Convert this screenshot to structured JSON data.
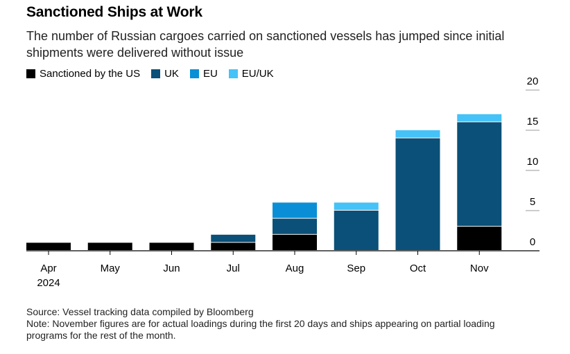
{
  "header": {
    "title": "Sanctioned Ships at Work",
    "subtitle": "The number of Russian cargoes carried on sanctioned vessels has jumped since initial shipments were delivered without issue"
  },
  "chart_data": {
    "type": "bar",
    "stacked": true,
    "categories": [
      "Apr",
      "May",
      "Jun",
      "Jul",
      "Aug",
      "Sep",
      "Oct",
      "Nov"
    ],
    "category_sublabels": [
      "2024",
      "",
      "",
      "",
      "",
      "",
      "",
      ""
    ],
    "series": [
      {
        "name": "Sanctioned by the US",
        "color": "#000000",
        "values": [
          1,
          1,
          1,
          1,
          2,
          0,
          0,
          3
        ]
      },
      {
        "name": "UK",
        "color": "#0a5078",
        "values": [
          0,
          0,
          0,
          1,
          2,
          5,
          14,
          13
        ]
      },
      {
        "name": "EU",
        "color": "#0a8fd6",
        "values": [
          0,
          0,
          0,
          0,
          2,
          0,
          0,
          0
        ]
      },
      {
        "name": "EU/UK",
        "color": "#45c2f7",
        "values": [
          0,
          0,
          0,
          0,
          0,
          1,
          1,
          1
        ]
      }
    ],
    "ylim": [
      0,
      20
    ],
    "yticks": [
      0,
      5,
      10,
      15,
      20
    ],
    "y_axis_position": "right",
    "legend_position": "top-left",
    "grid": false
  },
  "footer": {
    "source": "Source: Vessel tracking data compiled by Bloomberg",
    "note": "Note: November figures are for actual loadings during the first 20 days and ships appearing on partial loading programs for the rest of the month."
  }
}
